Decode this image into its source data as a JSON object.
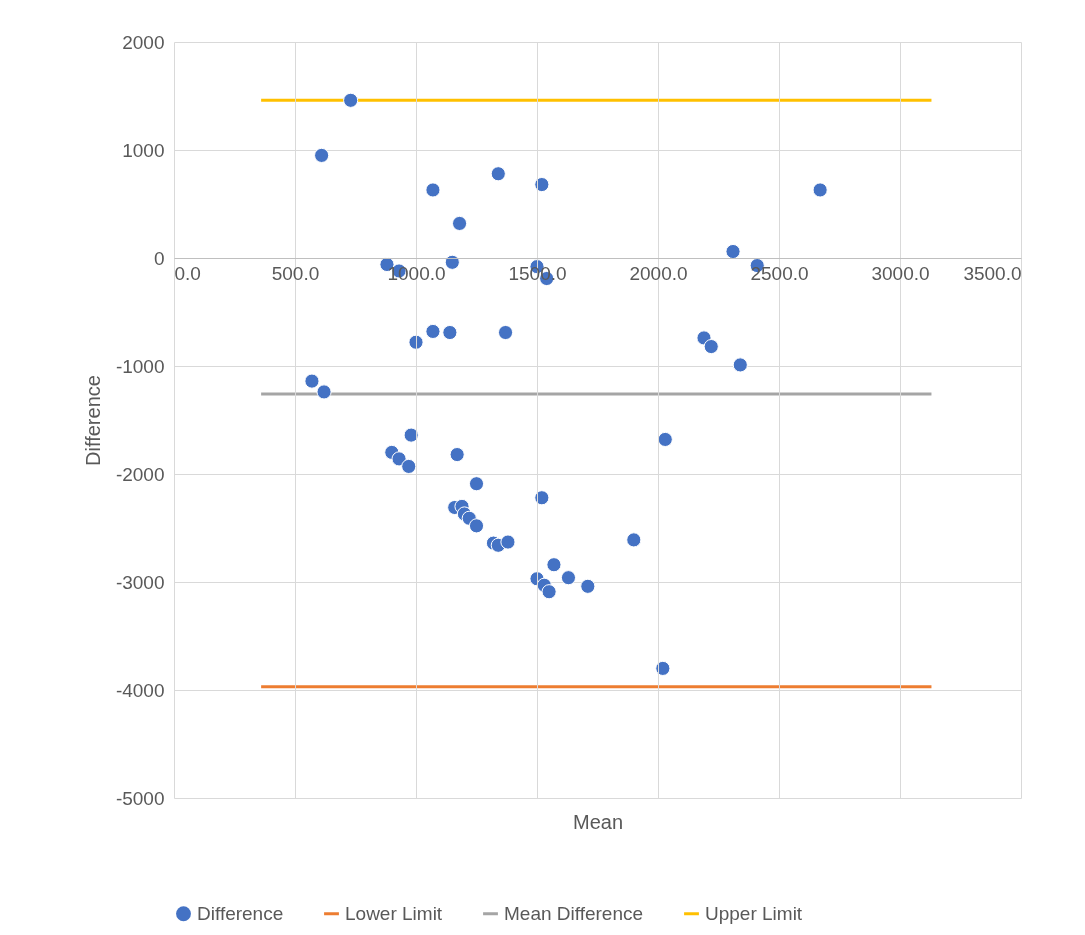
{
  "chart_data": {
    "type": "scatter",
    "xlabel": "Mean",
    "ylabel": "Difference",
    "xlim": [
      0,
      3500
    ],
    "xticks": [
      {
        "value": 0,
        "label": "0.0"
      },
      {
        "value": 500,
        "label": "500.0"
      },
      {
        "value": 1000,
        "label": "1000.0"
      },
      {
        "value": 1500,
        "label": "1500.0"
      },
      {
        "value": 2000,
        "label": "2000.0"
      },
      {
        "value": 2500,
        "label": "2500.0"
      },
      {
        "value": 3000,
        "label": "3000.0"
      },
      {
        "value": 3500,
        "label": "3500.0"
      }
    ],
    "ylim": [
      -5000,
      2000
    ],
    "yticks": [
      -5000,
      -4000,
      -3000,
      -2000,
      -1000,
      0,
      1000,
      2000
    ],
    "grid": true,
    "legend": "bottom",
    "series": [
      {
        "name": "Difference",
        "color": "#4472c4",
        "marker": "circle",
        "x": [
          730,
          610,
          1070,
          1340,
          1520,
          1180,
          880,
          930,
          1150,
          1500,
          1540,
          2310,
          2410,
          2670,
          1070,
          1140,
          1000,
          1370,
          2190,
          2220,
          2340,
          570,
          620,
          980,
          900,
          930,
          970,
          1170,
          1250,
          1520,
          2030,
          1160,
          1190,
          1200,
          1220,
          1250,
          1320,
          1340,
          1380,
          1900,
          1570,
          1630,
          1500,
          1530,
          1550,
          1710,
          2020
        ],
        "values": [
          1460,
          950,
          630,
          780,
          680,
          320,
          -60,
          -120,
          -40,
          -80,
          -190,
          60,
          -70,
          630,
          -680,
          -690,
          -780,
          -690,
          -740,
          -820,
          -990,
          -1140,
          -1240,
          -1640,
          -1800,
          -1860,
          -1930,
          -1820,
          -2090,
          -2220,
          -1680,
          -2310,
          -2300,
          -2370,
          -2410,
          -2480,
          -2640,
          -2660,
          -2630,
          -2610,
          -2840,
          -2960,
          -2970,
          -3030,
          -3090,
          -3040,
          -3800
        ]
      },
      {
        "type": "line",
        "name": "Lower Limit",
        "color": "#ed7d31",
        "x": [
          360,
          3130
        ],
        "values": [
          -3970,
          -3970
        ]
      },
      {
        "type": "line",
        "name": "Mean Difference",
        "color": "#a5a5a5",
        "x": [
          360,
          3130
        ],
        "values": [
          -1260,
          -1260
        ]
      },
      {
        "type": "line",
        "name": "Upper Limit",
        "color": "#ffc000",
        "x": [
          360,
          3130
        ],
        "values": [
          1460,
          1460
        ]
      }
    ]
  }
}
